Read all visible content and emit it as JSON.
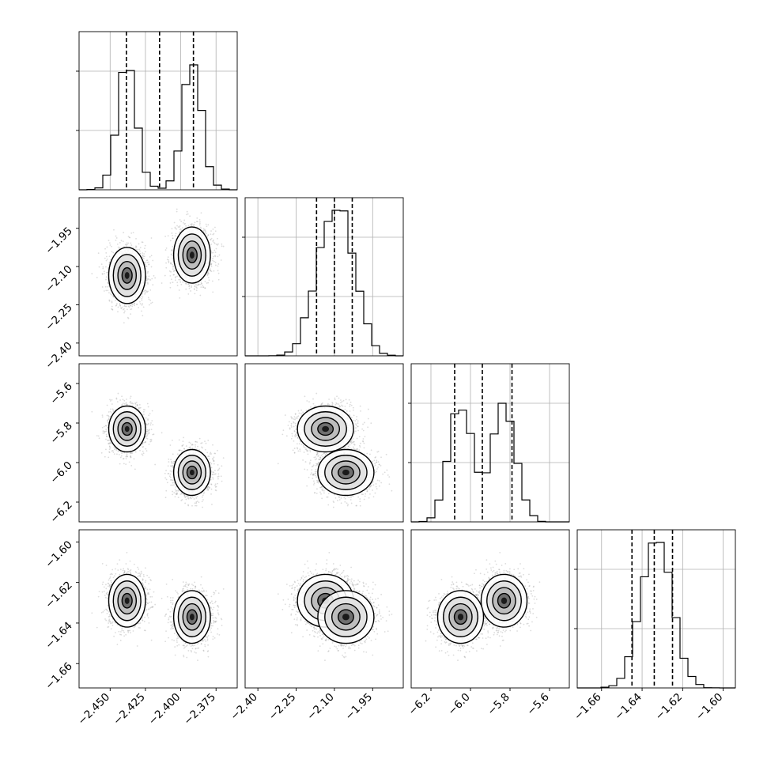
{
  "chart_data": {
    "type": "corner",
    "grid": true,
    "params": [
      {
        "range": [
          -2.472,
          -2.36
        ],
        "ticks": [
          {
            "v": -2.45,
            "label": "−2.450"
          },
          {
            "v": -2.425,
            "label": "−2.425"
          },
          {
            "v": -2.4,
            "label": "−2.400"
          },
          {
            "v": -2.375,
            "label": "−2.375"
          }
        ],
        "modes": [
          {
            "mu": -2.438,
            "sd": 0.0065
          },
          {
            "mu": -2.392,
            "sd": 0.0065
          }
        ],
        "hist_peak": 0.79,
        "quantiles": [
          -2.4385,
          -2.415,
          -2.391
        ]
      },
      {
        "range": [
          -2.45,
          -1.83
        ],
        "ticks": [
          {
            "v": -2.4,
            "label": "−2.40"
          },
          {
            "v": -2.25,
            "label": "−2.25"
          },
          {
            "v": -2.1,
            "label": "−2.10"
          },
          {
            "v": -1.95,
            "label": "−1.95"
          }
        ],
        "modes": [
          {
            "mu": -2.135,
            "sd": 0.055
          },
          {
            "mu": -2.055,
            "sd": 0.055
          }
        ],
        "hist_peak": 0.92,
        "quantiles": [
          -2.17,
          -2.1,
          -2.03
        ]
      },
      {
        "range": [
          -6.3,
          -5.5
        ],
        "ticks": [
          {
            "v": -6.2,
            "label": "−6.2"
          },
          {
            "v": -6.0,
            "label": "−6.0"
          },
          {
            "v": -5.8,
            "label": "−5.8"
          },
          {
            "v": -5.6,
            "label": "−5.6"
          }
        ],
        "modes": [
          {
            "mu": -5.83,
            "sd": 0.058
          },
          {
            "mu": -6.05,
            "sd": 0.058
          }
        ],
        "hist_peak": 0.75,
        "quantiles": [
          -6.08,
          -5.94,
          -5.79
        ]
      },
      {
        "range": [
          -1.672,
          -1.594
        ],
        "ticks": [
          {
            "v": -1.66,
            "label": "−1.66"
          },
          {
            "v": -1.64,
            "label": "−1.64"
          },
          {
            "v": -1.62,
            "label": "−1.62"
          },
          {
            "v": -1.6,
            "label": "−1.60"
          }
        ],
        "modes": [
          {
            "mu": -1.629,
            "sd": 0.0065
          },
          {
            "mu": -1.637,
            "sd": 0.0065
          }
        ],
        "hist_peak": 0.92,
        "quantiles": [
          -1.645,
          -1.634,
          -1.625
        ]
      }
    ],
    "hist_yticks": [
      0.375,
      0.75
    ],
    "hist_bins": 20
  }
}
